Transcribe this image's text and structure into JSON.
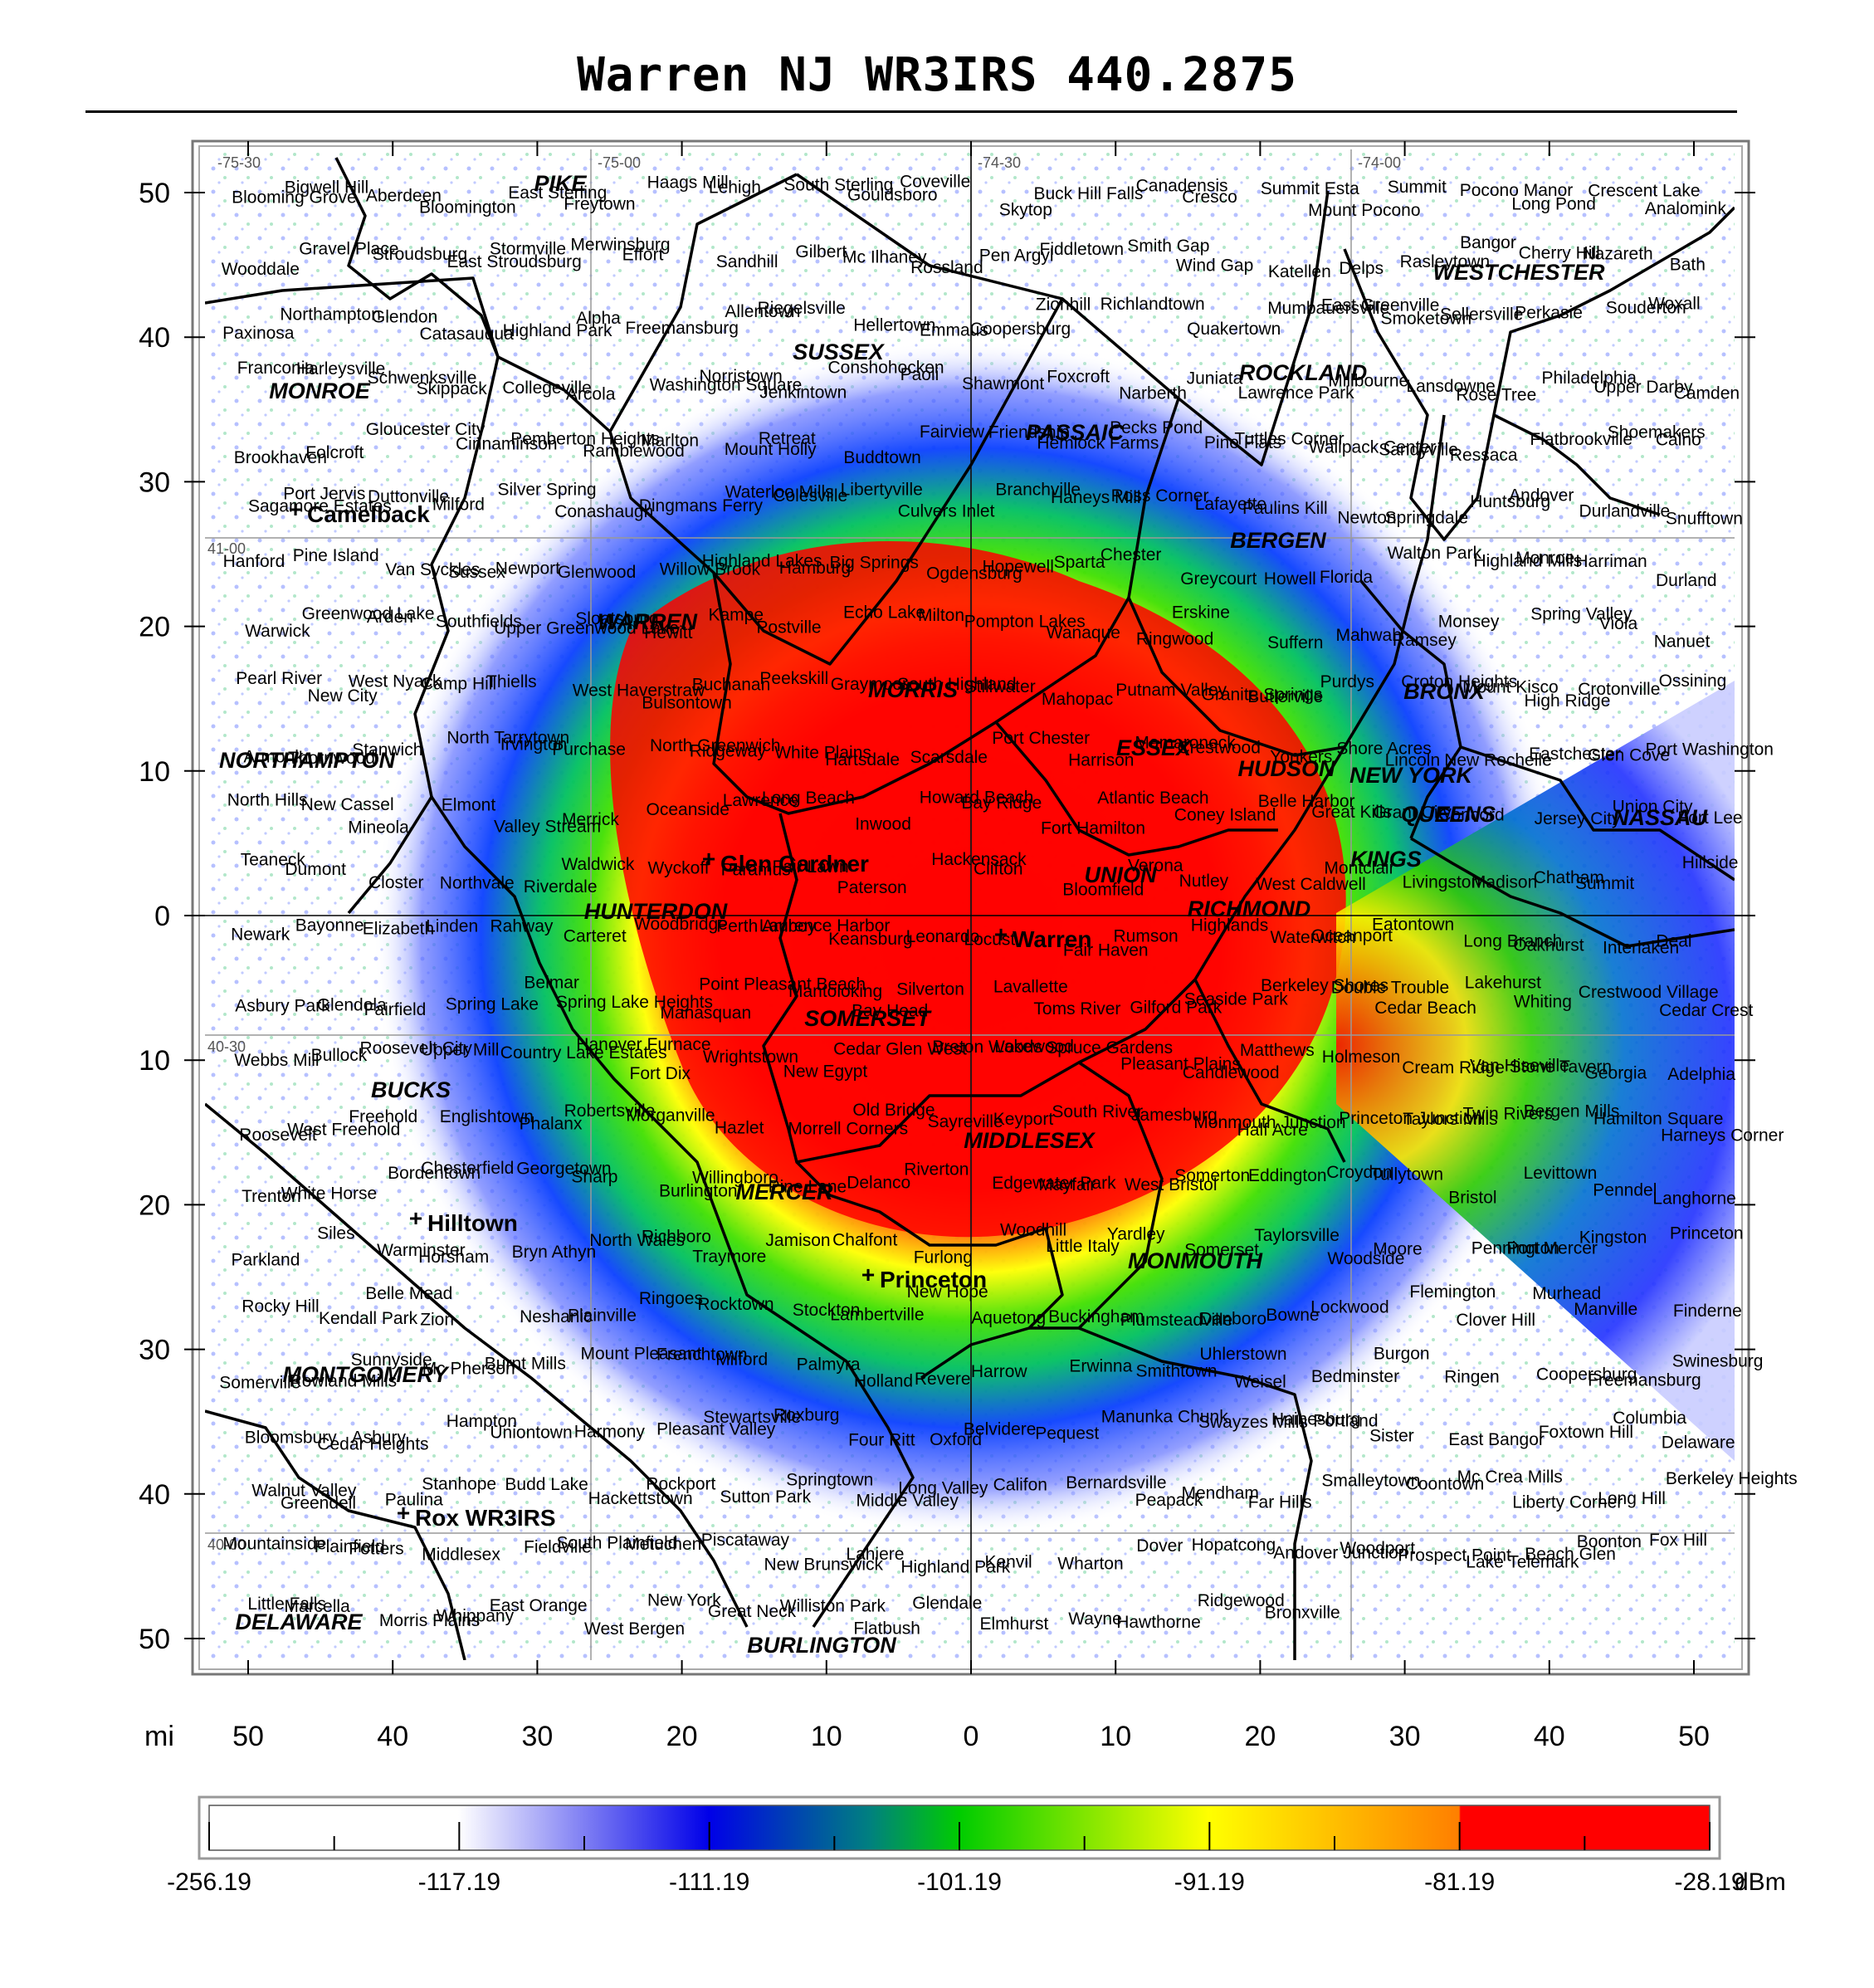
{
  "title": "Warren NJ WR3IRS 440.2875",
  "axis": {
    "unit": "mi",
    "x_ticks": [
      "50",
      "40",
      "30",
      "20",
      "10",
      "0",
      "10",
      "20",
      "30",
      "40",
      "50"
    ],
    "y_ticks": [
      "50",
      "40",
      "30",
      "20",
      "10",
      "0",
      "10",
      "20",
      "30",
      "40",
      "50"
    ]
  },
  "coord_labels": [
    "-75-30",
    "-75-00",
    "-74-30",
    "-74-00",
    "41-00",
    "40-30",
    "40-00"
  ],
  "counties": [
    "PIKE",
    "SUSSEX",
    "PASSAIC",
    "ROCKLAND",
    "WESTCHESTER",
    "MONROE",
    "BERGEN",
    "WARREN",
    "MORRIS",
    "ESSEX",
    "HUDSON",
    "BRONX",
    "NEW YORK",
    "QUEENS",
    "NASSAU",
    "NORTHAMPTON",
    "KINGS",
    "UNION",
    "RICHMOND",
    "HUNTERDON",
    "SOMERSET",
    "BUCKS",
    "MIDDLESEX",
    "MERCER",
    "MONMOUTH",
    "MONTGOMERY",
    "DELAWARE",
    "BURLINGTON"
  ],
  "major_places": [
    "Camelback",
    "Glen Gardner",
    "Warren",
    "Hilltown",
    "Princeton",
    "Rox WR3IRS"
  ],
  "places": [
    "Blooming Grove",
    "Bigwell Hill",
    "Aberdeen",
    "Bloomington",
    "East Sterling",
    "Freytown",
    "Haags Mill",
    "Lehigh",
    "South Sterling",
    "Gouldsboro",
    "Coveville",
    "Skytop",
    "Buck Hill Falls",
    "Canadensis",
    "Cresco",
    "Summit Esta",
    "Mount Pocono",
    "Summit",
    "Pocono Manor",
    "Long Pond",
    "Crescent Lake",
    "Analomink",
    "Wooddale",
    "Gravel Place",
    "Stroudsburg",
    "East Stroudsburg",
    "Stormville",
    "Merwinsburg",
    "Effort",
    "Sandhill",
    "Gilbert",
    "Mc Ilhaney",
    "Rossland",
    "Pen Argyl",
    "Fiddletown",
    "Smith Gap",
    "Wind Gap",
    "Katellen",
    "Delps",
    "Rasleytown",
    "Bangor",
    "Cherry Hill",
    "Nazareth",
    "Bath",
    "Paxinosa",
    "Northampton",
    "Glendon",
    "Catasauqua",
    "Highland Park",
    "Alpha",
    "Freemansburg",
    "Allentown",
    "Riegelsville",
    "Hellertown",
    "Emmaus",
    "Coopersburg",
    "Zionhill",
    "Richlandtown",
    "Quakertown",
    "Mumbauersville",
    "East Greenville",
    "Smoketown",
    "Sellersville",
    "Perkasie",
    "Souderton",
    "Woxall",
    "Franconia",
    "Harleysville",
    "Schwenksville",
    "Skippack",
    "Collegeville",
    "Arcola",
    "Washington Square",
    "Norristown",
    "Jenkintown",
    "Conshohocken",
    "Paoli",
    "Shawmont",
    "Foxcroft",
    "Narberth",
    "Juniata",
    "Lawrence Park",
    "Millbourne",
    "Lansdowne",
    "Rose Tree",
    "Philadelphia",
    "Upper Darby",
    "Camden",
    "Brookhaven",
    "Folcroft",
    "Gloucester City",
    "Cinnaminson",
    "Pemberton Heights",
    "Ramblewood",
    "Marlton",
    "Mount Holly",
    "Retreat",
    "Buddtown",
    "Fairview",
    "Friendship",
    "Hemlock Farms",
    "Pecks Pond",
    "Pine Flats",
    "Tuttles Corner",
    "Wallpack Center",
    "Sandyville",
    "Ressaca",
    "Flatbrookville",
    "Shoemakers",
    "Calno",
    "Sagamore Estates",
    "Port Jervis",
    "Duttonville",
    "Milford",
    "Silver Spring",
    "Conashaugh",
    "Dingmans Ferry",
    "Waterloo Mills",
    "Colesville",
    "Libertyville",
    "Culvers Inlet",
    "Branchville",
    "Haneys Mill",
    "Ross Corner",
    "Lafayette",
    "Paulins Kill",
    "Newton",
    "Springdale",
    "Huntsburg",
    "Andover",
    "Durlandville",
    "Snufftown",
    "Hanford",
    "Pine Island",
    "Van Syckles",
    "Sussex",
    "Newport",
    "Glenwood",
    "Willow Brook",
    "Highland Lakes",
    "Hamburg",
    "Big Springs",
    "Ogdensburg",
    "Hopewell",
    "Sparta",
    "Chester",
    "Greycourt",
    "Howell",
    "Florida",
    "Walton Park",
    "Highland Mills",
    "Monroe",
    "Harriman",
    "Durland",
    "Warwick",
    "Greenwood Lake",
    "Arden",
    "Southfields",
    "Upper Greenwood Lake",
    "Sloatsburg",
    "Hewitt",
    "Kampe",
    "Postville",
    "Echo Lake",
    "Milton",
    "Pompton Lakes",
    "Wanaque",
    "Ringwood",
    "Erskine",
    "Suffern",
    "Mahwah",
    "Ramsey",
    "Monsey",
    "Spring Valley",
    "Viola",
    "Nanuet",
    "Pearl River",
    "New City",
    "West Nyack",
    "Camp Hill",
    "Thiells",
    "West Haverstraw",
    "Bulsontown",
    "Buchanan",
    "Peekskill",
    "Graymoor",
    "South Highland",
    "Stillwater",
    "Mahopac",
    "Putnam Valley",
    "Granite Springs",
    "Butlerville",
    "Purdys",
    "Croton Heights",
    "Mount Kisco",
    "High Ridge",
    "Crotonville",
    "Ossining",
    "Armonk",
    "Thornwood",
    "Stanwich",
    "North Tarrytown",
    "Irvington",
    "Purchase",
    "North Greenwich",
    "Ridgeway",
    "White Plains",
    "Hartsdale",
    "Scarsdale",
    "Port Chester",
    "Harrison",
    "Mamaroneck",
    "Crestwood",
    "Yonkers",
    "Shore Acres",
    "Lincoln",
    "New Rochelle",
    "Eastchester",
    "Glen Cove",
    "Port Washington",
    "North Hills",
    "New Cassel",
    "Mineola",
    "Elmont",
    "Valley Stream",
    "Merrick",
    "Oceanside",
    "Lawrence",
    "Long Beach",
    "Inwood",
    "Howard Beach",
    "Bay Ridge",
    "Fort Hamilton",
    "Atlantic Beach",
    "Coney Island",
    "Belle Harbor",
    "Great Kills",
    "Grant City",
    "Concord",
    "Jersey City",
    "Union City",
    "Fort Lee",
    "Teaneck",
    "Dumont",
    "Closter",
    "Northvale",
    "Riverdale",
    "Waldwick",
    "Wyckoff",
    "Paramus",
    "Fair Lawn",
    "Paterson",
    "Hackensack",
    "Clifton",
    "Bloomfield",
    "Verona",
    "Nutley",
    "West Caldwell",
    "Montclair",
    "Livingston",
    "Madison",
    "Chatham",
    "Summit",
    "Hillside",
    "Newark",
    "Bayonne",
    "Elizabeth",
    "Linden",
    "Rahway",
    "Carteret",
    "Woodbridge",
    "Perth Amboy",
    "Laurence Harbor",
    "Keansburg",
    "Leonardo",
    "Locust",
    "Fair Haven",
    "Rumson",
    "Highlands",
    "Waterwitch",
    "Oceanport",
    "Eatontown",
    "Long Branch",
    "Oakhurst",
    "Interlaken",
    "Deal",
    "Asbury Park",
    "Glendola",
    "Fairfield",
    "Spring Lake",
    "Belmar",
    "Spring Lake Heights",
    "Manasquan",
    "Point Pleasant Beach",
    "Mantoloking",
    "Bay Head",
    "Silverton",
    "Lavallette",
    "Toms River",
    "Gilford Park",
    "Seaside Park",
    "Berkeley Shores",
    "Double Trouble",
    "Cedar Beach",
    "Lakehurst",
    "Whiting",
    "Crestwood Village",
    "Cedar Crest",
    "Webbs Mill",
    "Bullock",
    "Roosevelt City",
    "Upper Mill",
    "Country Lake Estates",
    "Hanover Furnace",
    "Fort Dix",
    "Wrightstown",
    "New Egypt",
    "Cedar Glen West",
    "Breton Woods",
    "Lakewood",
    "Spruce Gardens",
    "Pleasant Plains",
    "Candlewood",
    "Matthews",
    "Holmeson",
    "Cream Ridge",
    "Van Hiseville",
    "Stone Tavern",
    "Georgia",
    "Adelphia",
    "Roosevelt",
    "West Freehold",
    "Freehold",
    "Englishtown",
    "Phalanx",
    "Robertsville",
    "Morganville",
    "Hazlet",
    "Morrell Corners",
    "Old Bridge",
    "Sayreville",
    "Keyport",
    "South River",
    "Jamesburg",
    "Monmouth Junction",
    "Half Acre",
    "Princeton Junction",
    "Taylors Mills",
    "Twin Rivers",
    "Bergen Mills",
    "Hamilton Square",
    "Harneys Corner",
    "Trenton",
    "White Horse",
    "Bordentown",
    "Chesterfield",
    "Georgetown",
    "Sharp",
    "Burlington",
    "Willingboro",
    "Pine Lane",
    "Delanco",
    "Riverton",
    "Edgewater Park",
    "Mayfair",
    "West Bristol",
    "Somerton",
    "Eddington",
    "Croydon",
    "Tullytown",
    "Bristol",
    "Levittown",
    "Penndel",
    "Langhorne",
    "Parkland",
    "Siles",
    "Warminster",
    "Horsham",
    "Bryn Athyn",
    "North Wales",
    "Richboro",
    "Traymore",
    "Jamison",
    "Chalfont",
    "Furlong",
    "Woodhill",
    "Little Italy",
    "Yardley",
    "Somerset",
    "Taylorsville",
    "Woodside",
    "Moore",
    "Pennington",
    "Port Mercer",
    "Kingston",
    "Princeton",
    "Rocky Hill",
    "Kendall Park",
    "Belle Mead",
    "Zion",
    "Neshanic",
    "Plainville",
    "Ringoes",
    "Rocktown",
    "Stockton",
    "Lambertville",
    "New Hope",
    "Aquetong",
    "Buckingham",
    "Plumsteadville",
    "Danboro",
    "Bowne",
    "Lockwood",
    "Flemington",
    "Clover Hill",
    "Murhead",
    "Manville",
    "Finderne",
    "Somerville",
    "Rowland Mills",
    "Sunnyside",
    "Mc Pherson",
    "Burnt Mills",
    "Mount Pleasant",
    "Frenchtown",
    "Milford",
    "Palmyra",
    "Holland",
    "Revere",
    "Harrow",
    "Erwinna",
    "Smithtown",
    "Uhlerstown",
    "Weisel",
    "Bedminster",
    "Burgon",
    "Ringen",
    "Coopersburg",
    "Freemansburg",
    "Swinesburg",
    "Bloomsbury",
    "Cedar Heights",
    "Asbury",
    "Hampton",
    "Uniontown",
    "Harmony",
    "Pleasant Valley",
    "Stewartsville",
    "Roxburg",
    "Four Ritt",
    "Oxford",
    "Belvidere",
    "Pequest",
    "Manunka Chunk",
    "Swayzes Mills",
    "Hainesburg",
    "Portland",
    "Sister",
    "East Bangor",
    "Foxtown Hill",
    "Columbia",
    "Delaware",
    "Walnut Valley",
    "Greendell",
    "Paulina",
    "Stanhope",
    "Budd Lake",
    "Hackettstown",
    "Rockport",
    "Sutton Park",
    "Springtown",
    "Middle Valley",
    "Long Valley",
    "Califon",
    "Bernardsville",
    "Peapack",
    "Mendham",
    "Far Hills",
    "Smalleytown",
    "Coontown",
    "Mc Crea Mills",
    "Liberty Corner",
    "Long Hill",
    "Berkeley Heights",
    "Mountainside",
    "Plainfield",
    "Potters",
    "Middlesex",
    "Fieldville",
    "South Plainfield",
    "Metuchen",
    "Piscataway",
    "New Brunswick",
    "Lahiere",
    "Highland Park",
    "Kenvil",
    "Wharton",
    "Dover",
    "Hopatcong",
    "Andover Junction",
    "Woodport",
    "Prospect Point",
    "Lake Telemark",
    "Beach Glen",
    "Boonton",
    "Fox Hill",
    "Little Falls",
    "Marcella",
    "Morris Plains",
    "Whippany",
    "East Orange",
    "West Bergen",
    "New York",
    "Great Neck",
    "Williston Park",
    "Flatbush",
    "Glendale",
    "Elmhurst",
    "Wayne",
    "Hawthorne",
    "Ridgewood",
    "Bronxville"
  ],
  "colorbar": {
    "labels": [
      "-256.19",
      "-117.19",
      "-111.19",
      "-101.19",
      "-91.19",
      "-81.19",
      "-28.19"
    ],
    "unit": "dBm",
    "colors": [
      "#ffffff",
      "#ffffff",
      "#1010f0",
      "#00c000",
      "#ffff00",
      "#ff0000",
      "#ff0000"
    ]
  }
}
